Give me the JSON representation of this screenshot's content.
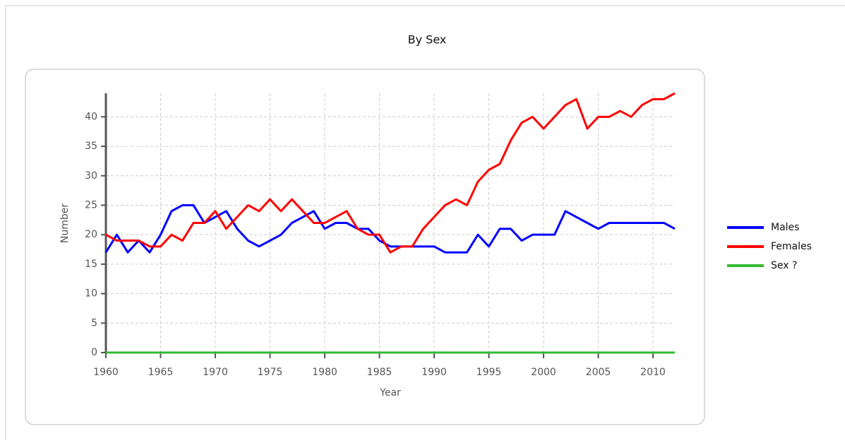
{
  "chart_data": {
    "type": "line",
    "title": "By Sex",
    "x_label": "Year",
    "y_label": "Number",
    "x": [
      1960,
      1961,
      1962,
      1963,
      1964,
      1965,
      1966,
      1967,
      1968,
      1969,
      1970,
      1971,
      1972,
      1973,
      1974,
      1975,
      1976,
      1977,
      1978,
      1979,
      1980,
      1981,
      1982,
      1983,
      1984,
      1985,
      1986,
      1987,
      1988,
      1989,
      1990,
      1991,
      1992,
      1993,
      1994,
      1995,
      1996,
      1997,
      1998,
      1999,
      2000,
      2001,
      2002,
      2003,
      2004,
      2005,
      2006,
      2007,
      2008,
      2009,
      2010,
      2011,
      2012
    ],
    "series": [
      {
        "name": "Males",
        "color": "#0000ff",
        "values": [
          17,
          20,
          17,
          19,
          17,
          20,
          24,
          25,
          25,
          22,
          23,
          24,
          21,
          19,
          18,
          19,
          20,
          22,
          23,
          24,
          21,
          22,
          22,
          21,
          21,
          19,
          18,
          18,
          18,
          18,
          18,
          17,
          17,
          17,
          20,
          18,
          21,
          21,
          19,
          20,
          20,
          20,
          24,
          23,
          22,
          21,
          22,
          22,
          22,
          22,
          22,
          22,
          21
        ]
      },
      {
        "name": "Females",
        "color": "#ff0000",
        "values": [
          20,
          19,
          19,
          19,
          18,
          18,
          20,
          19,
          22,
          22,
          24,
          21,
          23,
          25,
          24,
          26,
          24,
          26,
          24,
          22,
          22,
          23,
          24,
          21,
          20,
          20,
          17,
          18,
          18,
          21,
          23,
          25,
          26,
          25,
          29,
          31,
          32,
          36,
          39,
          40,
          38,
          40,
          42,
          43,
          38,
          40,
          40,
          41,
          40,
          42,
          43,
          43,
          44
        ]
      },
      {
        "name": "Sex ?",
        "color": "#33bb33",
        "values": [
          0,
          0,
          0,
          0,
          0,
          0,
          0,
          0,
          0,
          0,
          0,
          0,
          0,
          0,
          0,
          0,
          0,
          0,
          0,
          0,
          0,
          0,
          0,
          0,
          0,
          0,
          0,
          0,
          0,
          0,
          0,
          0,
          0,
          0,
          0,
          0,
          0,
          0,
          0,
          0,
          0,
          0,
          0,
          0,
          0,
          0,
          0,
          0,
          0,
          0,
          0,
          0,
          0
        ]
      }
    ],
    "xlim": [
      1960,
      2012
    ],
    "xticks": [
      1960,
      1965,
      1970,
      1975,
      1980,
      1985,
      1990,
      1995,
      2000,
      2005,
      2010
    ],
    "ylim": [
      0,
      44
    ],
    "yticks": [
      0,
      5,
      10,
      15,
      20,
      25,
      30,
      35,
      40
    ],
    "grid": true,
    "legend": "right"
  }
}
